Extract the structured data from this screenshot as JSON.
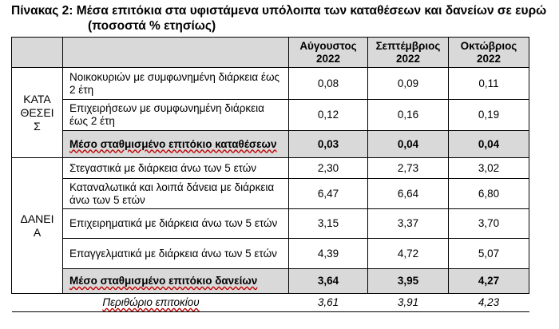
{
  "title": {
    "line1": "Πίνακας 2: Μέσα επιτόκια στα υφιστάμενα υπόλοιπα των καταθέσεων και δανείων σε ευρώ",
    "line2": "(ποσοστά % ετησίως)"
  },
  "columns": [
    {
      "month": "Αύγουστος",
      "year": "2022"
    },
    {
      "month": "Σεπτέμβριος",
      "year": "2022"
    },
    {
      "month": "Οκτώβριος",
      "year": "2022"
    }
  ],
  "deposits": {
    "label_lines": [
      "ΚΑΤΑ",
      "ΘΕΣΕΙ",
      "Σ"
    ],
    "rows": [
      {
        "desc": "Νοικοκυριών με συμφωνημένη διάρκεια έως 2 έτη",
        "values": [
          "0,08",
          "0,09",
          "0,11"
        ]
      },
      {
        "desc": "Επιχειρήσεων με συμφωνημένη διάρκεια έως 2 έτη",
        "values": [
          "0,12",
          "0,16",
          "0,19"
        ]
      }
    ],
    "average": {
      "desc": "Μέσο σταθμισμένο επιτόκιο καταθέσεων",
      "values": [
        "0,03",
        "0,04",
        "0,04"
      ]
    }
  },
  "loans": {
    "label_lines": [
      "ΔΑΝΕΙ",
      "Α"
    ],
    "rows": [
      {
        "desc": "Στεγαστικά με διάρκεια άνω των 5 ετών",
        "values": [
          "2,30",
          "2,73",
          "3,02"
        ]
      },
      {
        "desc": "Καταναλωτικά και λοιπά δάνεια με διάρκεια άνω των 5 ετών",
        "values": [
          "6,47",
          "6,64",
          "6,80"
        ]
      },
      {
        "desc": "Επιχειρηματικά με διάρκεια άνω των 5 ετών",
        "values": [
          "3,15",
          "3,37",
          "3,70"
        ]
      },
      {
        "desc": "Επαγγελματικά με διάρκεια άνω των 5 ετών",
        "values": [
          "4,39",
          "4,72",
          "5,07"
        ]
      }
    ],
    "average": {
      "desc": "Μέσο σταθμισμένο επιτόκιο δανείων",
      "values": [
        "3,64",
        "3,95",
        "4,27"
      ]
    }
  },
  "margin": {
    "desc": "Περιθώριο επιτοκίου",
    "values": [
      "3,61",
      "3,91",
      "4,23"
    ]
  }
}
